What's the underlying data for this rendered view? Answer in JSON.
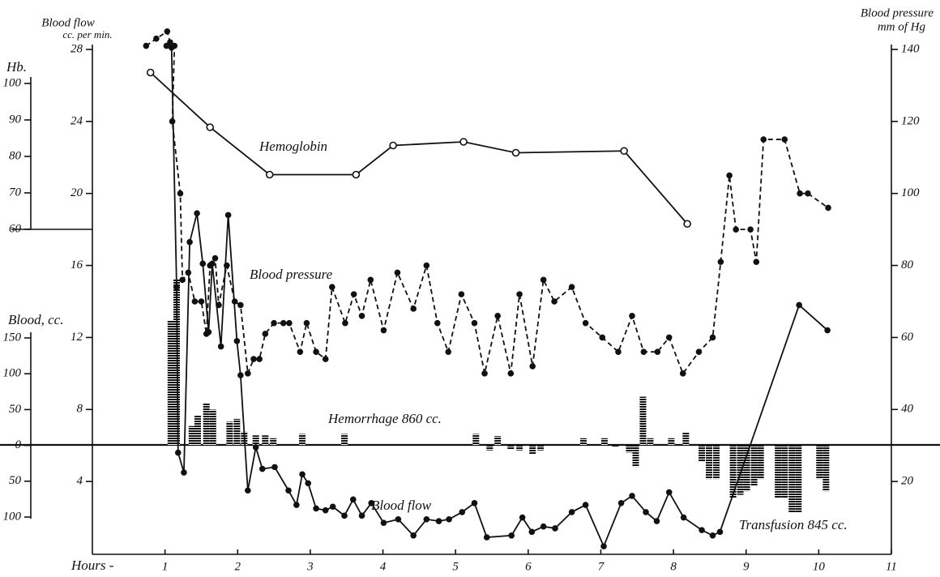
{
  "chart_data": {
    "type": "line",
    "xlabel": "Hours -",
    "xlim": [
      0,
      11
    ],
    "xticks": [
      1,
      2,
      3,
      4,
      5,
      6,
      7,
      8,
      9,
      10,
      11
    ],
    "ylabel": [
      "Blood flow",
      "cc. per min."
    ],
    "ylim": [
      0,
      28
    ],
    "yticks": [
      4,
      8,
      12,
      16,
      20,
      24,
      28
    ],
    "y2label": [
      "Blood pressure",
      "mm of Hg"
    ],
    "y2lim": [
      0,
      140
    ],
    "y2ticks": [
      20,
      40,
      60,
      80,
      100,
      120,
      140
    ],
    "y3label": "Hb.",
    "y3lim": [
      60,
      100
    ],
    "y3ticks": [
      60,
      70,
      80,
      90,
      100
    ],
    "y4label": "Blood, cc.",
    "y4lim": [
      -100,
      150
    ],
    "y4ticks": [
      {
        "value": -100,
        "label": "100"
      },
      {
        "value": -50,
        "label": "50"
      },
      0,
      50,
      100,
      150
    ],
    "series": [
      {
        "name": "Hemoglobin",
        "axis": "y3",
        "dashed": false,
        "marker": "open",
        "x": [
          0.8,
          1.62,
          2.44,
          3.63,
          4.14,
          5.11,
          5.83,
          7.32,
          8.19
        ],
        "values": [
          103,
          88,
          75,
          75,
          83,
          84,
          81,
          81.5,
          61.5
        ]
      },
      {
        "name": "Blood pressure",
        "axis": "y2",
        "dashed": true,
        "marker": "dot",
        "x": [
          0.74,
          0.88,
          1.03,
          1.07,
          1.13,
          1.1,
          1.21,
          1.24,
          1.32,
          1.41,
          1.5,
          1.57,
          1.62,
          1.69,
          1.74,
          1.85,
          1.96,
          2.04,
          2.14,
          2.22,
          2.3,
          2.38,
          2.5,
          2.63,
          2.71,
          2.86,
          2.95,
          3.08,
          3.21,
          3.3,
          3.48,
          3.6,
          3.71,
          3.83,
          4.01,
          4.2,
          4.42,
          4.6,
          4.75,
          4.9,
          5.08,
          5.26,
          5.4,
          5.58,
          5.76,
          5.88,
          6.06,
          6.21,
          6.36,
          6.6,
          6.79,
          7.02,
          7.24,
          7.43,
          7.59,
          7.78,
          7.94,
          8.13,
          8.35,
          8.54,
          8.65,
          8.77,
          8.86,
          9.06,
          9.14,
          9.24,
          9.53,
          9.74,
          9.85,
          10.13
        ],
        "values": [
          141,
          143,
          145,
          142,
          141,
          120,
          100,
          76,
          78,
          70,
          70,
          61,
          80,
          82,
          69,
          80,
          70,
          69,
          50,
          54,
          54,
          61,
          64,
          64,
          64,
          56,
          64,
          56,
          54,
          74,
          64,
          72,
          66,
          76,
          62,
          78,
          68,
          80,
          64,
          56,
          72,
          64,
          50,
          66,
          50,
          72,
          52,
          76,
          70,
          74,
          64,
          60,
          56,
          66,
          56,
          56,
          60,
          50,
          56,
          60,
          81,
          105,
          90,
          90,
          81,
          115,
          115,
          100,
          100,
          96
        ]
      },
      {
        "name": "Blood flow",
        "axis": "y",
        "dashed": false,
        "marker": "dot",
        "x": [
          1.02,
          1.09,
          1.16,
          1.18,
          1.26,
          1.34,
          1.44,
          1.52,
          1.6,
          1.65,
          1.77,
          1.87,
          1.99,
          2.04,
          2.14,
          2.25,
          2.34,
          2.51,
          2.7,
          2.81,
          2.89,
          2.97,
          3.08,
          3.21,
          3.31,
          3.47,
          3.59,
          3.71,
          3.84,
          4.01,
          4.21,
          4.42,
          4.6,
          4.77,
          4.91,
          5.09,
          5.26,
          5.43,
          5.77,
          5.92,
          6.05,
          6.21,
          6.37,
          6.6,
          6.79,
          7.04,
          7.28,
          7.43,
          7.62,
          7.77,
          7.94,
          8.14,
          8.39,
          8.54,
          8.64,
          9.73,
          10.12
        ],
        "values": [
          28.2,
          28.1,
          14.8,
          5.6,
          4.5,
          17.3,
          18.9,
          16.1,
          12.3,
          16.1,
          11.5,
          18.8,
          11.8,
          9.9,
          3.5,
          5.9,
          4.7,
          4.8,
          3.5,
          2.7,
          4.4,
          3.9,
          2.5,
          2.4,
          2.6,
          2.1,
          3.0,
          2.1,
          2.8,
          1.7,
          1.9,
          1.0,
          1.9,
          1.8,
          1.9,
          2.3,
          2.8,
          0.9,
          1.0,
          2.0,
          1.2,
          1.5,
          1.4,
          2.3,
          2.7,
          0.4,
          2.8,
          3.2,
          2.3,
          1.8,
          3.4,
          2.0,
          1.3,
          1.0,
          1.2,
          13.8,
          12.4
        ]
      }
    ],
    "bars": {
      "axis": "y4",
      "x": [
        1.08,
        1.16,
        1.37,
        1.45,
        1.57,
        1.66,
        1.89,
        1.99,
        2.09,
        2.25,
        2.38,
        2.49,
        2.89,
        3.47,
        5.28,
        5.47,
        5.58,
        5.76,
        5.88,
        6.06,
        6.17,
        6.76,
        7.05,
        7.2,
        7.39,
        7.48,
        7.58,
        7.68,
        7.97,
        8.17,
        8.39,
        8.49,
        8.59,
        8.82,
        8.92,
        9.01,
        9.11,
        9.2,
        9.44,
        9.53,
        9.63,
        9.72,
        10.01,
        10.1
      ],
      "values": [
        174,
        232,
        27,
        42,
        59,
        50,
        33,
        37,
        19,
        14,
        14,
        10,
        16,
        16,
        16,
        -7,
        13,
        -5,
        -7,
        -12,
        -7,
        10,
        10,
        -2,
        -10,
        -30,
        68,
        10,
        10,
        18,
        -22,
        -47,
        -47,
        -73,
        -69,
        -64,
        -56,
        -47,
        -73,
        -73,
        -94,
        -94,
        -47,
        -64
      ]
    },
    "annotations": [
      "Hemorrhage 860 cc.",
      "Transfusion 845 cc."
    ]
  }
}
